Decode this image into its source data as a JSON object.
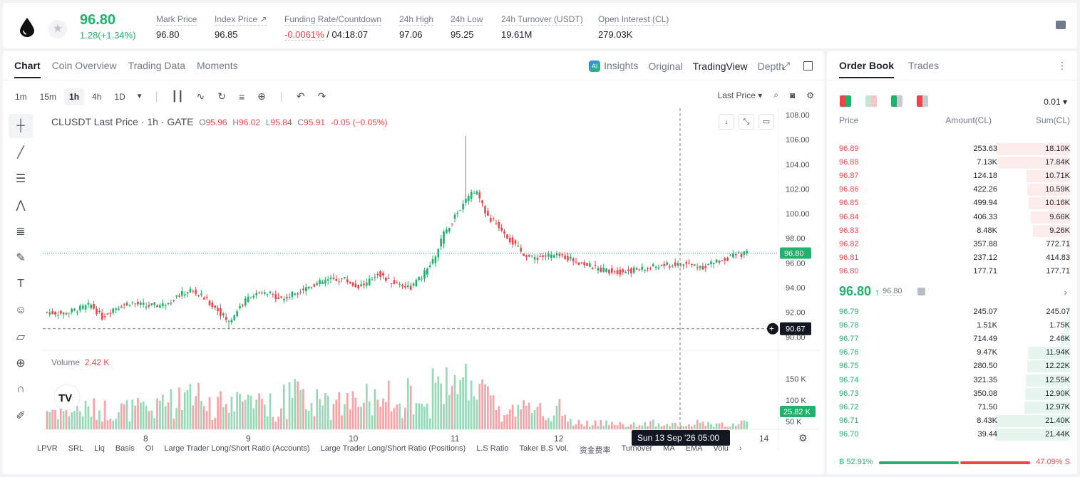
{
  "ticker": {
    "last_price": "96.80",
    "change": "1.28(+1.34%)",
    "stats": [
      {
        "label": "Mark Price",
        "value": "96.80"
      },
      {
        "label": "Index Price ↗",
        "value": "96.85"
      },
      {
        "label": "Funding Rate/Countdown",
        "value_red": "-0.0061%",
        "value": " / 04:18:07"
      },
      {
        "label": "24h High",
        "value": "97.06"
      },
      {
        "label": "24h Low",
        "value": "95.25"
      },
      {
        "label": "24h Turnover (USDT)",
        "value": "19.61M"
      },
      {
        "label": "Open Interest (CL)",
        "value": "279.03K"
      }
    ]
  },
  "chart_tabs": [
    "Chart",
    "Coin Overview",
    "Trading Data",
    "Moments"
  ],
  "view_tabs": {
    "insights": "Insights",
    "original": "Original",
    "tradingview": "TradingView",
    "depth": "Depth"
  },
  "timeframes": [
    "1m",
    "15m",
    "1h",
    "4h",
    "1D"
  ],
  "last_price_select": "Last Price",
  "legend": {
    "title": "CLUSDT Last Price · 1h · GATE",
    "o": "95.96",
    "h": "96.02",
    "l": "95.84",
    "c": "95.91",
    "chg": "-0.05 (−0.05%)"
  },
  "volume": {
    "label": "Volume",
    "value": "2.42 K"
  },
  "crosshair": {
    "price": "90.67",
    "time": "Sun 13 Sep '26   05:00"
  },
  "price_tag": "96.80",
  "volume_tag": "25.82 K",
  "indicators": [
    "LPVR",
    "SRL",
    "Liq",
    "Basis",
    "OI",
    "Large Trader Long/Short Ratio (Accounts)",
    "Large Trader Long/Short Ratio (Positions)",
    "L.S Ratio",
    "Taker B.S Vol.",
    "资金费率",
    "Turnover",
    "MA",
    "EMA",
    "Volu"
  ],
  "chart_data": {
    "type": "candlestick",
    "title": "CLUSDT Last Price · 1h · GATE",
    "x_ticks": [
      "8",
      "9",
      "10",
      "11",
      "12",
      "14"
    ],
    "y_ticks": [
      "108.00",
      "106.00",
      "104.00",
      "102.00",
      "100.00",
      "98.00",
      "96.00",
      "94.00",
      "92.00",
      "90.00"
    ],
    "vol_ticks": [
      "150 K",
      "100 K",
      "50 K"
    ],
    "ylim": [
      89.5,
      108.2
    ],
    "close_path": [
      [
        0,
        92.0
      ],
      [
        6,
        91.9
      ],
      [
        12,
        92.3
      ],
      [
        16,
        92.6
      ],
      [
        20,
        91.6
      ],
      [
        24,
        92.3
      ],
      [
        30,
        92.8
      ],
      [
        36,
        92.5
      ],
      [
        42,
        92.6
      ],
      [
        48,
        93.4
      ],
      [
        52,
        93.8
      ],
      [
        56,
        93.3
      ],
      [
        62,
        92.2
      ],
      [
        66,
        91.2
      ],
      [
        70,
        92.5
      ],
      [
        74,
        93.4
      ],
      [
        80,
        93.5
      ],
      [
        86,
        93.1
      ],
      [
        90,
        93.6
      ],
      [
        96,
        94.2
      ],
      [
        102,
        94.6
      ],
      [
        108,
        94.7
      ],
      [
        112,
        94.1
      ],
      [
        116,
        94.3
      ],
      [
        120,
        95.2
      ],
      [
        124,
        94.5
      ],
      [
        128,
        94.3
      ],
      [
        132,
        94.0
      ],
      [
        136,
        94.9
      ],
      [
        140,
        96.1
      ],
      [
        144,
        98.3
      ],
      [
        148,
        99.8
      ],
      [
        152,
        101.0
      ],
      [
        154,
        101.8
      ],
      [
        156,
        101.6
      ],
      [
        158,
        100.6
      ],
      [
        160,
        99.7
      ],
      [
        164,
        99.0
      ],
      [
        168,
        97.9
      ],
      [
        172,
        96.9
      ],
      [
        176,
        96.4
      ],
      [
        182,
        96.6
      ],
      [
        188,
        96.5
      ],
      [
        194,
        96.0
      ],
      [
        200,
        95.5
      ],
      [
        208,
        95.3
      ],
      [
        216,
        95.5
      ],
      [
        224,
        95.8
      ],
      [
        232,
        95.9
      ],
      [
        238,
        95.7
      ],
      [
        244,
        96.2
      ],
      [
        250,
        96.6
      ],
      [
        254,
        96.8
      ]
    ],
    "spike": {
      "i": 152,
      "high": 106.3
    },
    "dip": {
      "i": 66,
      "low": 90.7
    }
  },
  "order_book": {
    "tabs": [
      "Order Book",
      "Trades"
    ],
    "precision": "0.01",
    "headers": {
      "price": "Price",
      "amount": "Amount(CL)",
      "sum": "Sum(CL)"
    },
    "asks": [
      {
        "price": "96.89",
        "amount": "253.63",
        "sum": "18.10K",
        "depth": 0.98
      },
      {
        "price": "96.88",
        "amount": "7.13K",
        "sum": "17.84K",
        "depth": 0.96
      },
      {
        "price": "96.87",
        "amount": "124.18",
        "sum": "10.71K",
        "depth": 0.58
      },
      {
        "price": "96.86",
        "amount": "422.26",
        "sum": "10.59K",
        "depth": 0.57
      },
      {
        "price": "96.85",
        "amount": "499.94",
        "sum": "10.16K",
        "depth": 0.55
      },
      {
        "price": "96.84",
        "amount": "406.33",
        "sum": "9.66K",
        "depth": 0.52
      },
      {
        "price": "96.83",
        "amount": "8.48K",
        "sum": "9.26K",
        "depth": 0.5
      },
      {
        "price": "96.82",
        "amount": "357.88",
        "sum": "772.71",
        "depth": 0.04
      },
      {
        "price": "96.81",
        "amount": "237.12",
        "sum": "414.83",
        "depth": 0.02
      },
      {
        "price": "96.80",
        "amount": "177.71",
        "sum": "177.71",
        "depth": 0.01
      }
    ],
    "mid_price": "96.80",
    "mid_arrow": "↑",
    "mid_mark": "96.80",
    "bids": [
      {
        "price": "96.79",
        "amount": "245.07",
        "sum": "245.07",
        "depth": 0.01
      },
      {
        "price": "96.78",
        "amount": "1.51K",
        "sum": "1.75K",
        "depth": 0.08
      },
      {
        "price": "96.77",
        "amount": "714.49",
        "sum": "2.46K",
        "depth": 0.11
      },
      {
        "price": "96.76",
        "amount": "9.47K",
        "sum": "11.94K",
        "depth": 0.56
      },
      {
        "price": "96.75",
        "amount": "280.50",
        "sum": "12.22K",
        "depth": 0.57
      },
      {
        "price": "96.74",
        "amount": "321.35",
        "sum": "12.55K",
        "depth": 0.59
      },
      {
        "price": "96.73",
        "amount": "350.08",
        "sum": "12.90K",
        "depth": 0.6
      },
      {
        "price": "96.72",
        "amount": "71.50",
        "sum": "12.97K",
        "depth": 0.61
      },
      {
        "price": "96.71",
        "amount": "8.43K",
        "sum": "21.40K",
        "depth": 0.99
      },
      {
        "price": "96.70",
        "amount": "39.44",
        "sum": "21.44K",
        "depth": 1.0
      }
    ],
    "buy_ratio": "52.91%",
    "sell_ratio": "47.09%",
    "buy_fraction": 0.5291
  },
  "colors": {
    "up": "#20b26c",
    "down": "#ef454a",
    "up_bg": "#e6f6ee",
    "down_bg": "#fdecec"
  }
}
